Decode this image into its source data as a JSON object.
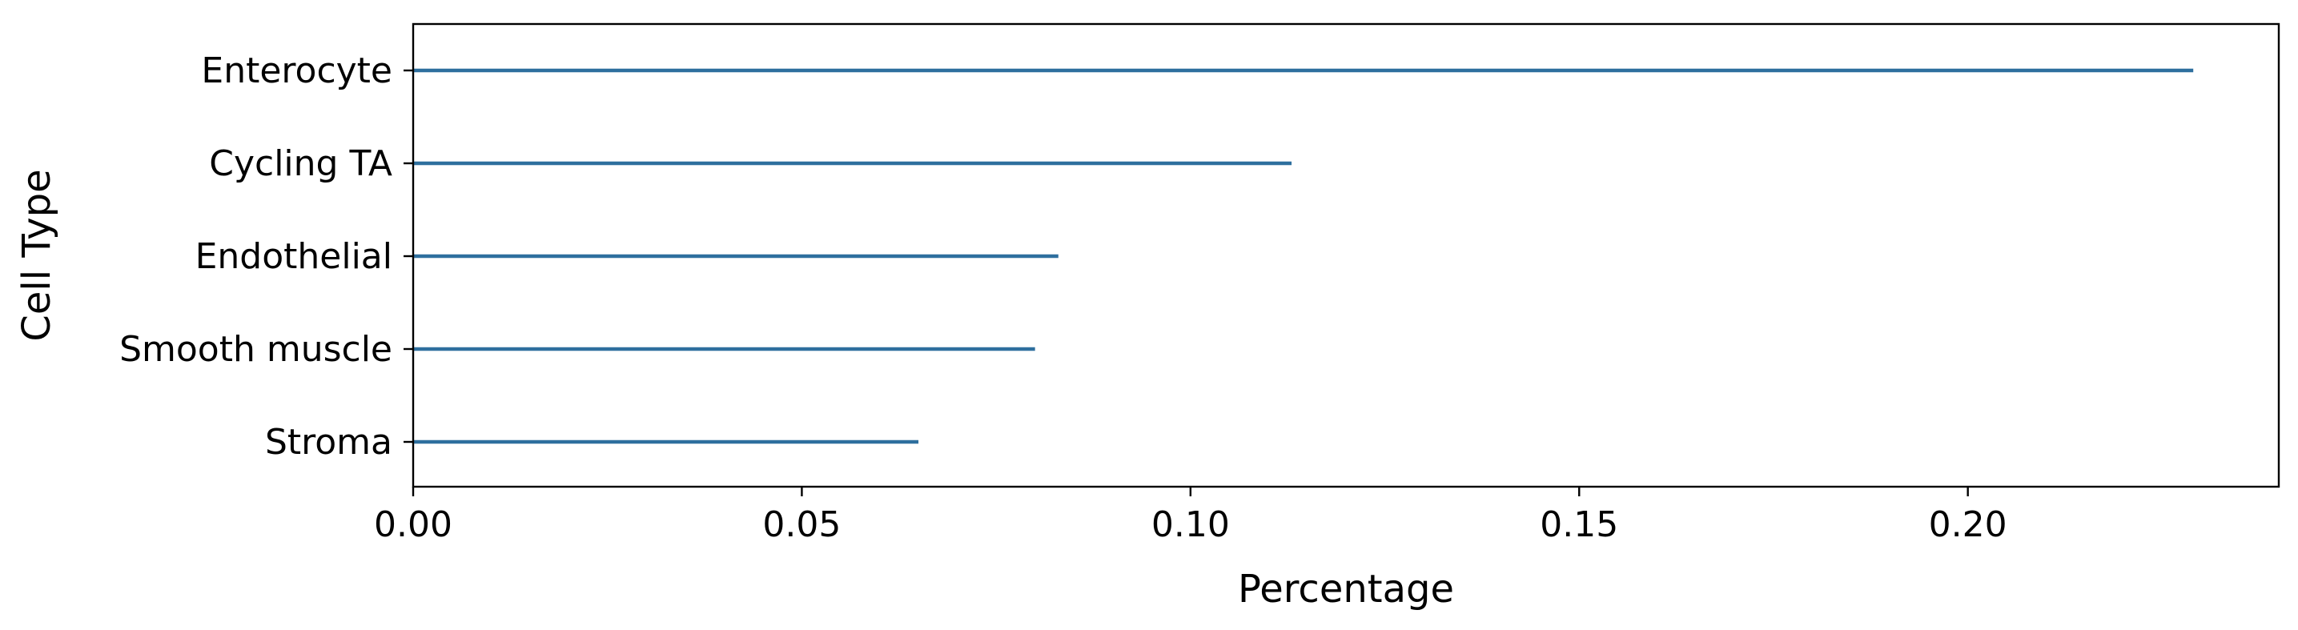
{
  "chart_data": {
    "type": "bar",
    "orientation": "horizontal",
    "categories": [
      "Enterocyte",
      "Cycling TA",
      "Endothelial",
      "Smooth muscle",
      "Stroma"
    ],
    "values": [
      0.229,
      0.113,
      0.083,
      0.08,
      0.065
    ],
    "xlabel": "Percentage",
    "ylabel": "Cell Type",
    "xlim": [
      0.0,
      0.24
    ],
    "xticks": [
      0.0,
      0.05,
      0.1,
      0.15,
      0.2
    ],
    "xtick_labels": [
      "0.00",
      "0.05",
      "0.10",
      "0.15",
      "0.20"
    ],
    "grid": false,
    "bar_color": "#2e6f9e"
  }
}
